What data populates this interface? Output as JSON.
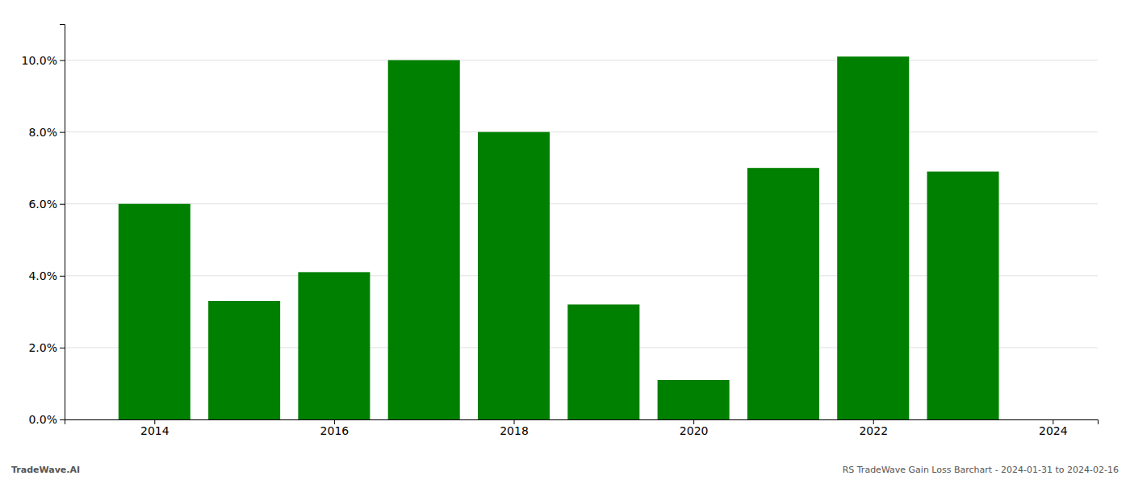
{
  "chart_data": {
    "type": "bar",
    "x": [
      2014,
      2015,
      2016,
      2017,
      2018,
      2019,
      2020,
      2021,
      2022,
      2023
    ],
    "values": [
      0.06,
      0.033,
      0.041,
      0.1,
      0.08,
      0.032,
      0.011,
      0.07,
      0.101,
      0.069
    ],
    "color": "#008000",
    "xlim": [
      2013.0,
      2024.5
    ],
    "xticks": [
      2014,
      2016,
      2018,
      2020,
      2022,
      2024
    ],
    "ylim": [
      0,
      0.11
    ],
    "yticks": [
      {
        "value": 0.0,
        "label": "0.0%"
      },
      {
        "value": 0.02,
        "label": "2.0%"
      },
      {
        "value": 0.04,
        "label": "4.0%"
      },
      {
        "value": 0.06,
        "label": "6.0%"
      },
      {
        "value": 0.08,
        "label": "8.0%"
      },
      {
        "value": 0.1,
        "label": "10.0%"
      }
    ],
    "grid": true,
    "annotations": [
      "TradeWave.AI",
      "RS TradeWave Gain Loss Barchart - 2024-01-31 to 2024-02-16"
    ]
  }
}
